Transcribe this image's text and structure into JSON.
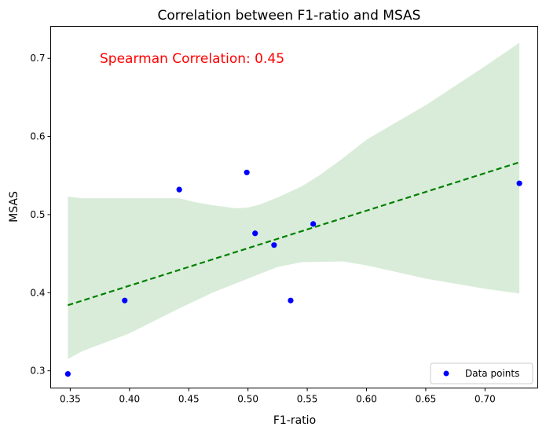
{
  "chart_data": {
    "type": "scatter",
    "title": "Correlation between F1-ratio and MSAS",
    "xlabel": "F1-ratio",
    "ylabel": "MSAS",
    "xlim": [
      0.3335,
      0.7445
    ],
    "ylim": [
      0.278,
      0.741
    ],
    "x_ticks": [
      {
        "value": 0.35,
        "label": "0.35"
      },
      {
        "value": 0.4,
        "label": "0.40"
      },
      {
        "value": 0.45,
        "label": "0.45"
      },
      {
        "value": 0.5,
        "label": "0.50"
      },
      {
        "value": 0.55,
        "label": "0.55"
      },
      {
        "value": 0.6,
        "label": "0.60"
      },
      {
        "value": 0.65,
        "label": "0.65"
      },
      {
        "value": 0.7,
        "label": "0.70"
      }
    ],
    "y_ticks": [
      {
        "value": 0.3,
        "label": "0.3"
      },
      {
        "value": 0.4,
        "label": "0.4"
      },
      {
        "value": 0.5,
        "label": "0.5"
      },
      {
        "value": 0.6,
        "label": "0.6"
      },
      {
        "value": 0.7,
        "label": "0.7"
      }
    ],
    "grid": false,
    "series": [
      {
        "name": "Data points",
        "kind": "scatter",
        "color": "#0000ff",
        "points": [
          {
            "x": 0.348,
            "y": 0.296
          },
          {
            "x": 0.396,
            "y": 0.39
          },
          {
            "x": 0.442,
            "y": 0.532
          },
          {
            "x": 0.499,
            "y": 0.554
          },
          {
            "x": 0.506,
            "y": 0.476
          },
          {
            "x": 0.522,
            "y": 0.461
          },
          {
            "x": 0.536,
            "y": 0.39
          },
          {
            "x": 0.555,
            "y": 0.488
          },
          {
            "x": 0.729,
            "y": 0.54
          }
        ]
      },
      {
        "kind": "regression_line",
        "color": "#008000",
        "style": "dashed",
        "points": [
          {
            "x": 0.348,
            "y": 0.384
          },
          {
            "x": 0.729,
            "y": 0.567
          }
        ]
      },
      {
        "kind": "confidence_band",
        "color": "#d9ecd9",
        "upper": [
          {
            "x": 0.348,
            "y": 0.523
          },
          {
            "x": 0.36,
            "y": 0.521
          },
          {
            "x": 0.4,
            "y": 0.521
          },
          {
            "x": 0.442,
            "y": 0.521
          },
          {
            "x": 0.455,
            "y": 0.516
          },
          {
            "x": 0.47,
            "y": 0.512
          },
          {
            "x": 0.49,
            "y": 0.508
          },
          {
            "x": 0.5,
            "y": 0.509
          },
          {
            "x": 0.51,
            "y": 0.513
          },
          {
            "x": 0.525,
            "y": 0.522
          },
          {
            "x": 0.545,
            "y": 0.536
          },
          {
            "x": 0.56,
            "y": 0.55
          },
          {
            "x": 0.58,
            "y": 0.572
          },
          {
            "x": 0.6,
            "y": 0.596
          },
          {
            "x": 0.65,
            "y": 0.64
          },
          {
            "x": 0.7,
            "y": 0.69
          },
          {
            "x": 0.729,
            "y": 0.72
          }
        ],
        "lower": [
          {
            "x": 0.348,
            "y": 0.315
          },
          {
            "x": 0.36,
            "y": 0.325
          },
          {
            "x": 0.4,
            "y": 0.348
          },
          {
            "x": 0.442,
            "y": 0.38
          },
          {
            "x": 0.47,
            "y": 0.4
          },
          {
            "x": 0.5,
            "y": 0.418
          },
          {
            "x": 0.525,
            "y": 0.433
          },
          {
            "x": 0.545,
            "y": 0.439
          },
          {
            "x": 0.58,
            "y": 0.44
          },
          {
            "x": 0.6,
            "y": 0.435
          },
          {
            "x": 0.65,
            "y": 0.418
          },
          {
            "x": 0.7,
            "y": 0.405
          },
          {
            "x": 0.729,
            "y": 0.399
          }
        ]
      }
    ],
    "annotation": {
      "text": "Spearman Correlation: 0.45",
      "color": "#ff0000",
      "position": "top-left"
    },
    "legend": {
      "position": "bottom-right",
      "entries": [
        "Data points"
      ]
    }
  }
}
